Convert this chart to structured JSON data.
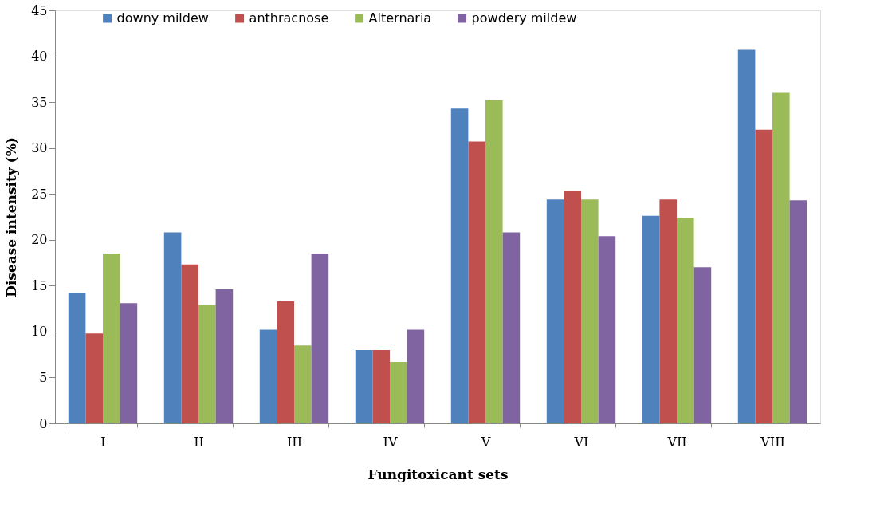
{
  "chart_data": {
    "type": "bar",
    "xlabel": "Fungitoxicant sets",
    "ylabel": "Disease intensity (%)",
    "categories": [
      "I",
      "II",
      "III",
      "IV",
      "V",
      "VI",
      "VII",
      "VIII"
    ],
    "series": [
      {
        "name": "downy mildew",
        "color": "#4f81bd",
        "values": [
          14.2,
          20.8,
          10.2,
          8.0,
          34.3,
          24.4,
          22.6,
          40.7
        ]
      },
      {
        "name": "anthracnose",
        "color": "#c0504d",
        "values": [
          9.8,
          17.3,
          13.3,
          8.0,
          30.7,
          25.3,
          24.4,
          32.0
        ]
      },
      {
        "name": "Alternaria",
        "color": "#9bbb59",
        "values": [
          18.5,
          12.9,
          8.5,
          6.7,
          35.2,
          24.4,
          22.4,
          36.0
        ]
      },
      {
        "name": "powdery mildew",
        "color": "#8064a2",
        "values": [
          13.1,
          14.6,
          18.5,
          10.2,
          20.8,
          20.4,
          17.0,
          24.3
        ]
      }
    ],
    "ylim": [
      0,
      45
    ],
    "yticks": [
      0,
      5,
      10,
      15,
      20,
      25,
      30,
      35,
      40,
      45
    ],
    "grid": false,
    "legend": "top"
  }
}
